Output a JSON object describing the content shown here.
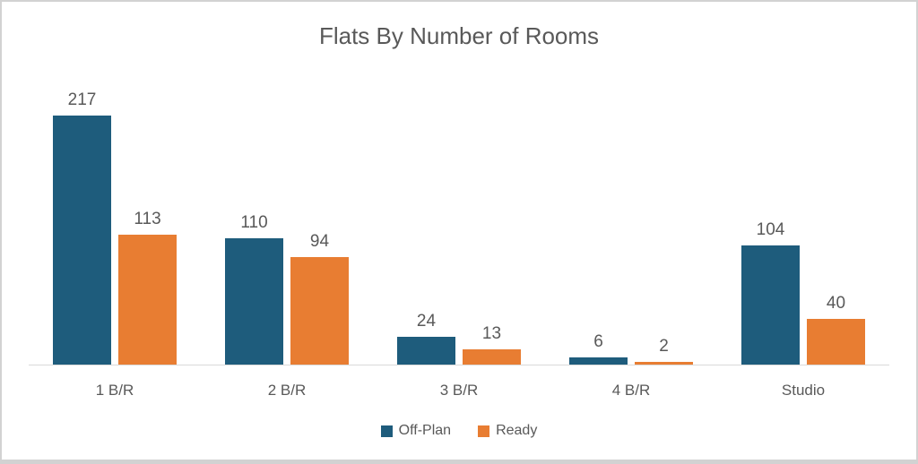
{
  "title": "Flats By Number of Rooms",
  "colors": {
    "off_plan": "#1e5c7c",
    "ready": "#e87d32",
    "title_text": "#595959",
    "label_text": "#595959",
    "axis_line": "#d9d9d9",
    "frame_border": "#d2d2d2",
    "background": "#ffffff"
  },
  "chart_data": {
    "type": "bar",
    "title": "Flats By Number of Rooms",
    "categories": [
      "1 B/R",
      "2 B/R",
      "3 B/R",
      "4 B/R",
      "Studio"
    ],
    "series": [
      {
        "name": "Off-Plan",
        "color": "#1e5c7c",
        "values": [
          217,
          110,
          24,
          6,
          104
        ]
      },
      {
        "name": "Ready",
        "color": "#e87d32",
        "values": [
          113,
          94,
          13,
          2,
          40
        ]
      }
    ],
    "xlabel": "",
    "ylabel": "",
    "ylim": [
      0,
      260
    ],
    "grid": false,
    "legend_position": "bottom",
    "data_labels": true
  },
  "legend": {
    "items": [
      {
        "label": "Off-Plan",
        "color": "#1e5c7c"
      },
      {
        "label": "Ready",
        "color": "#e87d32"
      }
    ]
  }
}
